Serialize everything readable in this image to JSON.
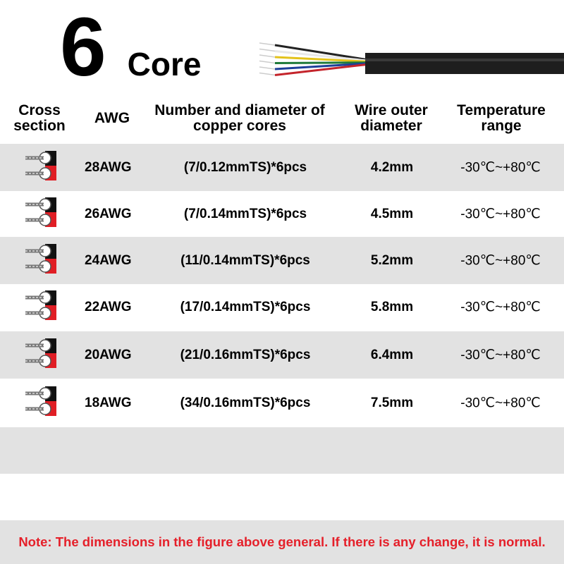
{
  "title": {
    "number": "6",
    "word": "Core"
  },
  "headers": [
    "Cross section",
    "AWG",
    "Number and diameter of copper cores",
    "Wire outer diameter",
    "Temperature range"
  ],
  "rows": [
    {
      "awg": "28AWG",
      "cores": "(7/0.12mmTS)*6pcs",
      "od": "4.2mm",
      "temp": "-30℃~+80℃"
    },
    {
      "awg": "26AWG",
      "cores": "(7/0.14mmTS)*6pcs",
      "od": "4.5mm",
      "temp": "-30℃~+80℃"
    },
    {
      "awg": "24AWG",
      "cores": "(11/0.14mmTS)*6pcs",
      "od": "5.2mm",
      "temp": "-30℃~+80℃"
    },
    {
      "awg": "22AWG",
      "cores": "(17/0.14mmTS)*6pcs",
      "od": "5.8mm",
      "temp": "-30℃~+80℃"
    },
    {
      "awg": "20AWG",
      "cores": "(21/0.16mmTS)*6pcs",
      "od": "6.4mm",
      "temp": "-30℃~+80℃"
    },
    {
      "awg": "18AWG",
      "cores": "(34/0.16mmTS)*6pcs",
      "od": "7.5mm",
      "temp": "-30℃~+80℃"
    }
  ],
  "note": "Note: The dimensions in the figure above general. If there is any change, it is normal.",
  "colors": {
    "stripe": "#e2e2e2",
    "note": "#e5202a",
    "wires": [
      "#222222",
      "#e8e8e8",
      "#e3c21b",
      "#1f7a3a",
      "#1d3f99",
      "#c4242b"
    ]
  }
}
